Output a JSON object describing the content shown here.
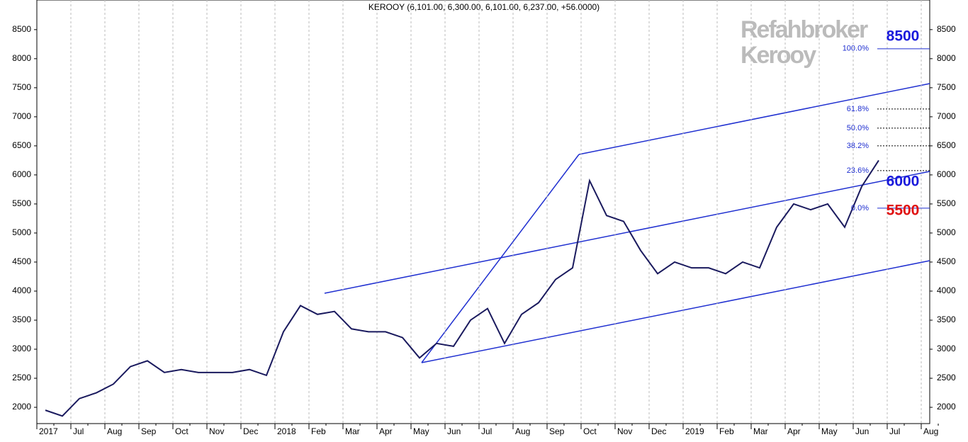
{
  "chart_data": {
    "type": "line",
    "title": "KEROOY (6,101.00, 6,300.00, 6,101.00, 6,237.00, +56.0000)",
    "watermark": [
      "Refahbroker",
      "Kerooy"
    ],
    "categories": [
      "2017",
      null,
      "Jul",
      null,
      "Aug",
      null,
      "Sep",
      null,
      "Oct",
      null,
      "Nov",
      null,
      "Dec",
      null,
      "2018",
      null,
      "Feb",
      null,
      "Mar",
      null,
      "Apr",
      null,
      "May",
      null,
      "Jun",
      null,
      "Jul",
      null,
      "Aug",
      null,
      "Sep",
      null,
      "Oct",
      null,
      "Nov",
      null,
      "Dec",
      null,
      "2019",
      null,
      "Feb",
      null,
      "Mar",
      null,
      "Apr",
      null,
      "May",
      null,
      "Jun",
      null,
      "Jul",
      null,
      "Aug",
      null
    ],
    "series": [
      {
        "name": "KEROOY",
        "color": "#1a1a5e",
        "values": [
          1950,
          1850,
          2150,
          2250,
          2400,
          2700,
          2800,
          2600,
          2650,
          2600,
          2600,
          2600,
          2650,
          2550,
          3300,
          3750,
          3600,
          3650,
          3350,
          3300,
          3300,
          3200,
          2850,
          3100,
          3050,
          3500,
          3700,
          3100,
          3600,
          3800,
          4200,
          4400,
          5900,
          5300,
          5200,
          4700,
          4300,
          4500,
          4400,
          4400,
          4300,
          4500,
          4400,
          5100,
          5500,
          5400,
          5500,
          5100,
          5800,
          6250,
          null,
          null,
          null,
          null
        ]
      }
    ],
    "ylim": [
      1720,
      9010
    ],
    "yticks": [
      2000,
      2500,
      3000,
      3500,
      4000,
      4500,
      5000,
      5500,
      6000,
      6500,
      7000,
      7500,
      8000,
      8500
    ],
    "fib_levels": [
      {
        "label": "100.0%",
        "value": 8171
      },
      {
        "label": "61.8%",
        "value": 7134
      },
      {
        "label": "50.0%",
        "value": 6805
      },
      {
        "label": "38.2%",
        "value": 6500
      },
      {
        "label": "23.6%",
        "value": 6073
      },
      {
        "label": "0.0%",
        "value": 5427
      }
    ],
    "levels": [
      {
        "label": "8500",
        "value": 8500,
        "color": "#1a1adc"
      },
      {
        "label": "6000",
        "value": 6000,
        "color": "#1a1adc"
      },
      {
        "label": "5500",
        "value": 5500,
        "color": "#e01010"
      }
    ]
  }
}
